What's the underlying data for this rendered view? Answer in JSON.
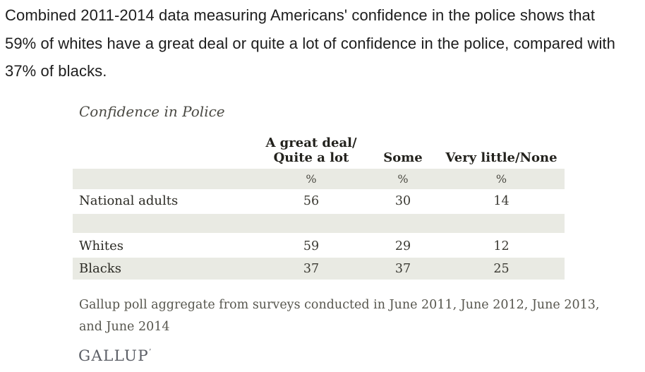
{
  "intro": {
    "lines": [
      "Combined 2011-2014 data measuring Americans' confidence in the police shows that",
      "59% of whites have a great deal or quite a lot of confidence in the police, compared with",
      "37% of blacks."
    ]
  },
  "figure": {
    "title": "Confidence in Police",
    "header": {
      "col1_line1": "A great deal/",
      "col1_line2": "Quite a lot",
      "col2": "Some",
      "col3": "Very little/None"
    },
    "unit_row": [
      "%",
      "%",
      "%"
    ],
    "source_lines": [
      "Gallup poll aggregate from surveys conducted in June 2011, June 2012, June 2013,",
      "and June 2014"
    ],
    "brand": "GALLUP",
    "brand_mark": "’"
  },
  "chart_data": {
    "type": "table",
    "title": "Confidence in Police",
    "columns": [
      "A great deal/Quite a lot",
      "Some",
      "Very little/None"
    ],
    "unit": "%",
    "rows": [
      {
        "label": "National adults",
        "values": [
          56,
          30,
          14
        ]
      },
      {
        "label": "Whites",
        "values": [
          59,
          29,
          12
        ]
      },
      {
        "label": "Blacks",
        "values": [
          37,
          37,
          25
        ]
      }
    ],
    "source": "Gallup poll aggregate from surveys conducted in June 2011, June 2012, June 2013, and June 2014"
  },
  "colors": {
    "row_shade": "#e9eae3",
    "intro_text": "#1d1d1d",
    "table_text": "#34332c",
    "note_text": "#57564e",
    "brand_text": "#5c5f66"
  }
}
